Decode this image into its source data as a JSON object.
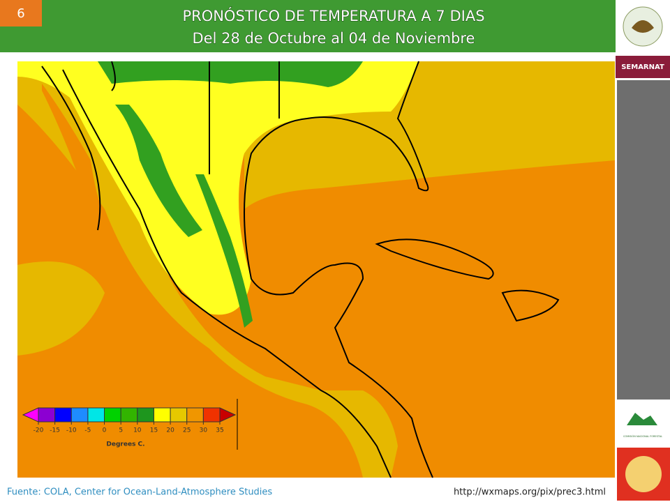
{
  "slide_number": "6",
  "header": {
    "title": "PRONÓSTICO DE TEMPERATURA A 7 DIAS",
    "subtitle": "Del 28 de Octubre al 04 de Noviembre"
  },
  "sidebar": {
    "agency": "SEMARNAT",
    "logo_caption": "COMISIÓN NACIONAL FORESTAL"
  },
  "legend": {
    "ticks": [
      -20,
      -15,
      -10,
      -5,
      0,
      5,
      10,
      15,
      20,
      25,
      30,
      35
    ],
    "label": "Degrees C.",
    "colors": [
      "#ff00ff",
      "#8c00d2",
      "#0000ff",
      "#1e8cff",
      "#00e6e6",
      "#00d200",
      "#32b400",
      "#1e961e",
      "#ffff00",
      "#e6c800",
      "#f09600",
      "#f03200",
      "#c80000"
    ]
  },
  "footer": {
    "source": "Fuente: COLA, Center  for Ocean-Land-Atmosphere Studies",
    "url": "http://wxmaps.org/pix/prec3.html"
  }
}
